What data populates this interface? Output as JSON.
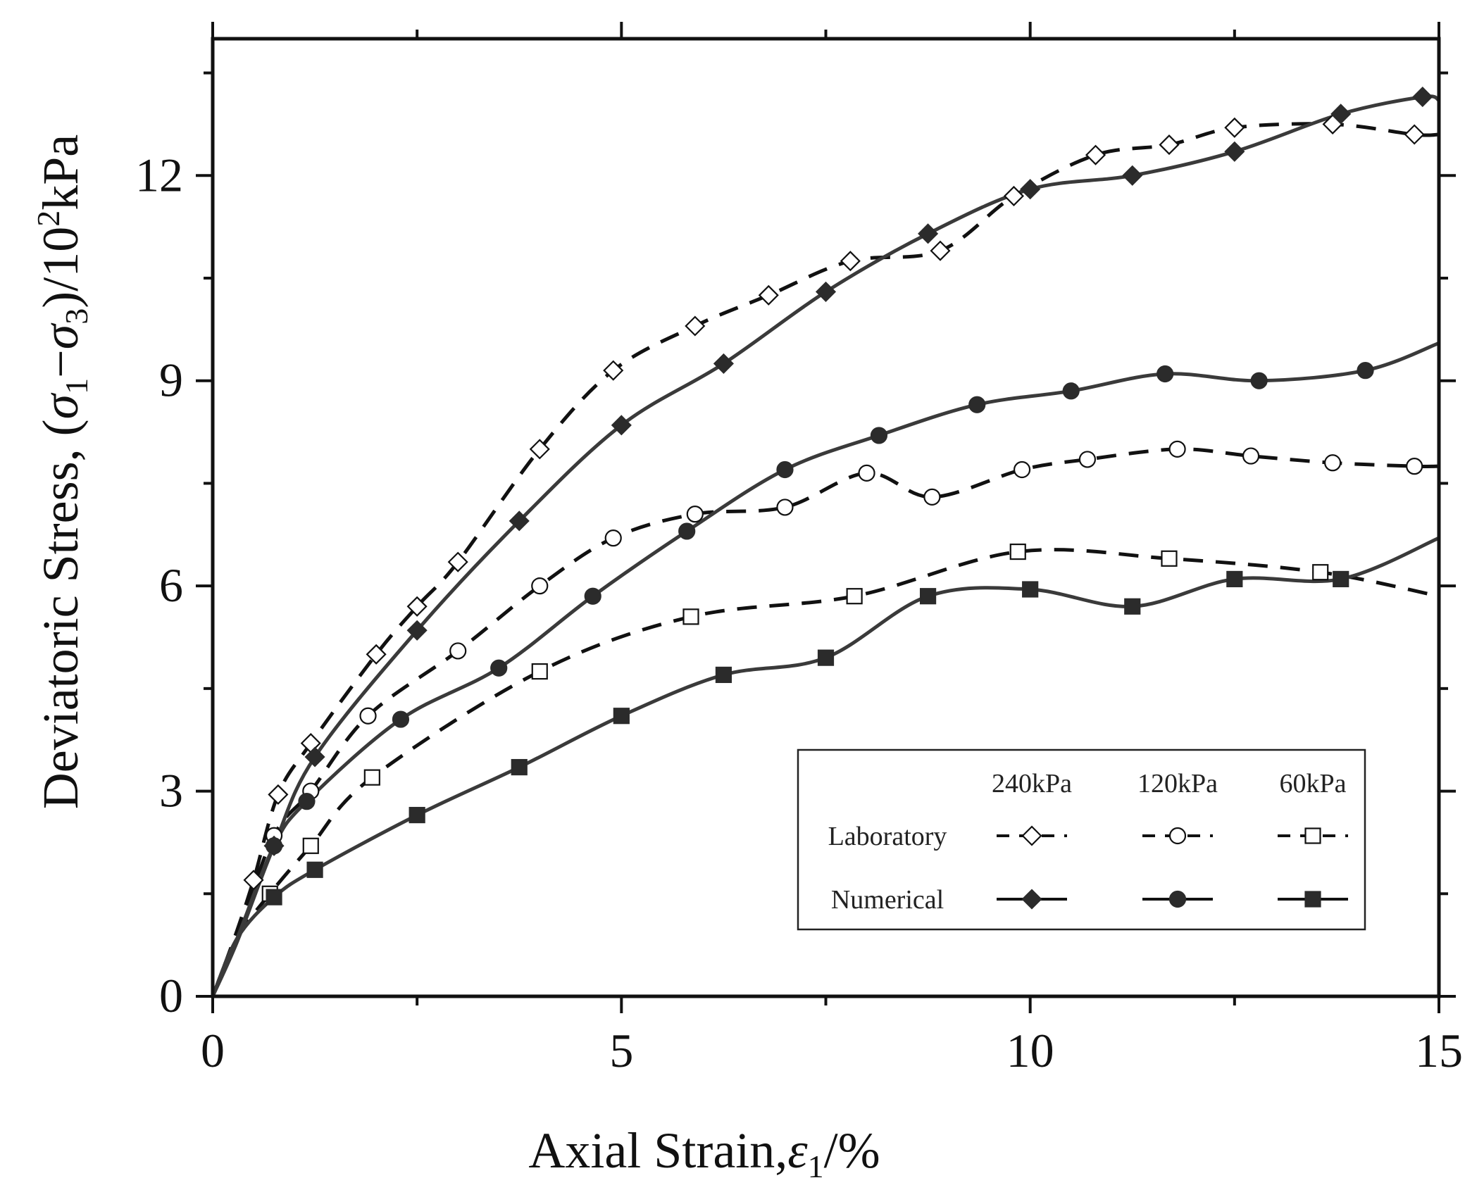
{
  "chart_data": {
    "type": "line",
    "title": "",
    "xlabel": "Axial Strain,ε1/%",
    "xlabel_parts": {
      "main": "Axial Strain,",
      "symbol": "ε",
      "sub": "1",
      "tail": "/%"
    },
    "ylabel": "Deviatoric Stress, (σ1−σ3)/10²kPa",
    "ylabel_parts": {
      "p1": "Deviatoric Stress, (",
      "s1": "σ",
      "sub1": "1",
      "minus": "−",
      "s3": "σ",
      "sub3": "3",
      "p2": ")/10",
      "sup": "2",
      "p3": "kPa"
    },
    "xlim": [
      0,
      15
    ],
    "ylim": [
      0,
      14
    ],
    "xticks": [
      0,
      5,
      10,
      15
    ],
    "xtick_labels": [
      "0",
      "5",
      "10",
      "15"
    ],
    "yticks": [
      0,
      3,
      6,
      9,
      12
    ],
    "ytick_labels": [
      "0",
      "3",
      "6",
      "9",
      "12"
    ],
    "grid": false,
    "legend": {
      "placement": "bottom-right",
      "column_headers": [
        "240kPa",
        "120kPa",
        "60kPa"
      ],
      "row_labels": [
        "Laboratory",
        "Numerical"
      ]
    },
    "series": [
      {
        "name": "Laboratory 240kPa",
        "kind": "laboratory",
        "pressure": "240kPa",
        "marker": "diamond-open",
        "line": "dashed",
        "x": [
          0,
          0.25,
          0.5,
          0.8,
          1.2,
          2.0,
          2.5,
          3.0,
          4.0,
          4.9,
          5.9,
          6.8,
          7.8,
          8.9,
          9.8,
          10.8,
          11.7,
          12.5,
          13.7,
          14.7,
          15.0
        ],
        "y": [
          0,
          0.8,
          1.7,
          2.95,
          3.7,
          5.0,
          5.7,
          6.35,
          8.0,
          9.15,
          9.8,
          10.25,
          10.75,
          10.9,
          11.7,
          12.3,
          12.45,
          12.7,
          12.75,
          12.6,
          12.6
        ]
      },
      {
        "name": "Laboratory 120kPa",
        "kind": "laboratory",
        "pressure": "120kPa",
        "marker": "circle-open",
        "line": "dashed",
        "x": [
          0,
          0.3,
          0.75,
          1.2,
          1.9,
          3.0,
          4.0,
          4.9,
          5.9,
          7.0,
          8.0,
          8.8,
          9.9,
          10.7,
          11.8,
          12.7,
          13.7,
          14.7,
          15.0
        ],
        "y": [
          0,
          0.9,
          2.35,
          3.0,
          4.1,
          5.05,
          6.0,
          6.7,
          7.05,
          7.15,
          7.65,
          7.3,
          7.7,
          7.85,
          8.0,
          7.9,
          7.8,
          7.75,
          7.75
        ]
      },
      {
        "name": "Laboratory 60kPa",
        "kind": "laboratory",
        "pressure": "60kPa",
        "marker": "square-open",
        "line": "dashed",
        "x": [
          0,
          0.3,
          0.7,
          1.2,
          1.95,
          4.0,
          5.85,
          7.85,
          9.85,
          11.7,
          13.55,
          15.0
        ],
        "y": [
          0,
          0.85,
          1.5,
          2.2,
          3.2,
          4.75,
          5.55,
          5.85,
          6.5,
          6.4,
          6.2,
          5.85
        ]
      },
      {
        "name": "Numerical 240kPa",
        "kind": "numerical",
        "pressure": "240kPa",
        "marker": "diamond-filled",
        "line": "solid",
        "x": [
          0,
          0.3,
          0.75,
          1.25,
          2.5,
          3.75,
          5.0,
          6.25,
          7.5,
          8.75,
          10.0,
          11.25,
          12.5,
          13.8,
          14.8,
          15.0
        ],
        "y": [
          0,
          0.8,
          2.2,
          3.5,
          5.35,
          6.95,
          8.35,
          9.25,
          10.3,
          11.15,
          11.8,
          12.0,
          12.35,
          12.9,
          13.15,
          13.1
        ]
      },
      {
        "name": "Numerical 120kPa",
        "kind": "numerical",
        "pressure": "120kPa",
        "marker": "circle-filled",
        "line": "solid",
        "x": [
          0,
          0.3,
          0.75,
          1.15,
          2.3,
          3.5,
          4.65,
          5.8,
          7.0,
          8.15,
          9.35,
          10.5,
          11.65,
          12.8,
          14.1,
          15.0
        ],
        "y": [
          0,
          0.85,
          2.2,
          2.85,
          4.05,
          4.8,
          5.85,
          6.8,
          7.7,
          8.2,
          8.65,
          8.85,
          9.1,
          9.0,
          9.15,
          9.55
        ]
      },
      {
        "name": "Numerical 60kPa",
        "kind": "numerical",
        "pressure": "60kPa",
        "marker": "square-filled",
        "line": "solid",
        "x": [
          0,
          0.3,
          0.75,
          1.25,
          2.5,
          3.75,
          5.0,
          6.25,
          7.5,
          8.75,
          10.0,
          11.25,
          12.5,
          13.8,
          15.0
        ],
        "y": [
          0,
          0.85,
          1.45,
          1.85,
          2.65,
          3.35,
          4.1,
          4.7,
          4.95,
          5.85,
          5.95,
          5.7,
          6.1,
          6.1,
          6.7
        ]
      }
    ]
  }
}
